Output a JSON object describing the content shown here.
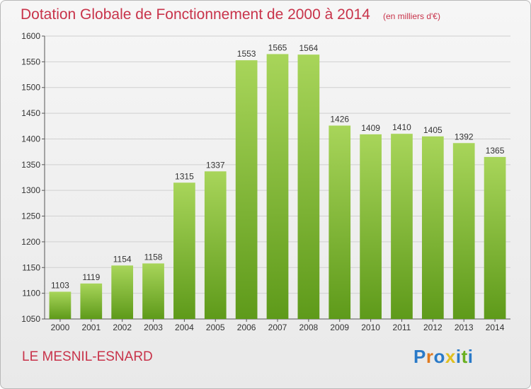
{
  "header": {
    "title": "Dotation Globale de Fonctionnement de 2000 à 2014",
    "unit": "(en milliers d'€)"
  },
  "footer": {
    "commune": "LE MESNIL-ESNARD",
    "logo_text": "Proxiti"
  },
  "colors": {
    "title": "#c8334a",
    "bar_top": "#a8d55a",
    "bar_bottom": "#5e9a1a",
    "grid": "#d0d0d0",
    "logo_letters": [
      "#2a7ac8",
      "#e07a20",
      "#2a7ac8",
      "#e0c020",
      "#2a7ac8",
      "#6ab020",
      "#2a7ac8"
    ]
  },
  "chart_data": {
    "type": "bar",
    "title": "Dotation Globale de Fonctionnement de 2000 à 2014",
    "subtitle": "(en milliers d'€)",
    "xlabel": "",
    "ylabel": "",
    "categories": [
      "2000",
      "2001",
      "2002",
      "2003",
      "2004",
      "2005",
      "2006",
      "2007",
      "2008",
      "2009",
      "2010",
      "2011",
      "2012",
      "2013",
      "2014"
    ],
    "values": [
      1103,
      1119,
      1154,
      1158,
      1315,
      1337,
      1553,
      1565,
      1564,
      1426,
      1409,
      1410,
      1405,
      1392,
      1365
    ],
    "ylim": [
      1050,
      1600
    ],
    "yticks": [
      1050,
      1100,
      1150,
      1200,
      1250,
      1300,
      1350,
      1400,
      1450,
      1500,
      1550,
      1600
    ],
    "grid": true,
    "data_labels": true
  }
}
